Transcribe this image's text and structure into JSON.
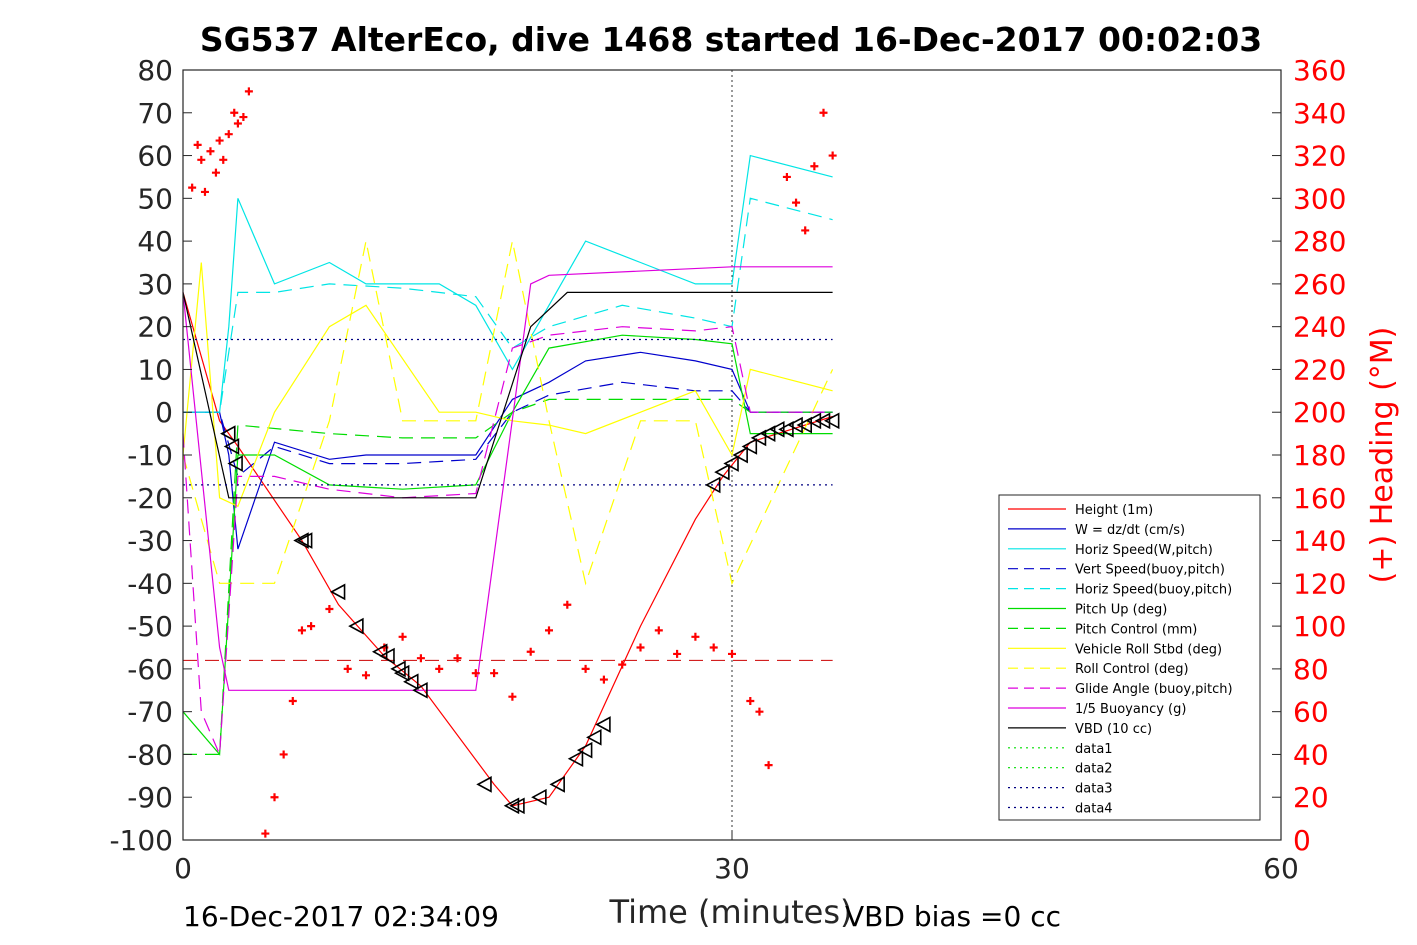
{
  "chart_data": {
    "type": "line",
    "title": "SG537 AlterEco, dive 1468 started 16-Dec-2017 00:02:03",
    "xlabel": "Time (minutes)",
    "ylabel_right": "(+) Heading (°M)",
    "xlim": [
      0,
      60
    ],
    "ylim": [
      -100,
      80
    ],
    "ylim_right": [
      0,
      360
    ],
    "x_ticks": [
      0,
      30,
      60
    ],
    "y_ticks": [
      80,
      70,
      60,
      50,
      40,
      30,
      20,
      10,
      0,
      -10,
      -20,
      -30,
      -40,
      -50,
      -60,
      -70,
      -80,
      -90,
      -100
    ],
    "y_ticks_right": [
      360,
      340,
      320,
      300,
      280,
      260,
      240,
      220,
      200,
      180,
      160,
      140,
      120,
      100,
      80,
      60,
      40,
      20,
      0
    ],
    "footer_left": "16-Dec-2017 02:34:09",
    "footer_right": "VBD bias =0 cc",
    "grid": false,
    "legend_position": "lower-right",
    "vertical_marker_x": 30,
    "series": [
      {
        "name": "Height (1m)",
        "color": "#ff0000",
        "style": "solid",
        "x": [
          0,
          2,
          3,
          6.5,
          8.5,
          11,
          13,
          17,
          18,
          20,
          22,
          25,
          28,
          29.5,
          31,
          35.5
        ],
        "values": [
          28,
          -2,
          -8,
          -30,
          -45,
          -57,
          -64,
          -87,
          -92,
          -90,
          -78,
          -50,
          -25,
          -15,
          -7,
          -1
        ]
      },
      {
        "name": "W = dz/dt (cm/s)",
        "color": "#0000cc",
        "style": "solid",
        "x": [
          0,
          2,
          2.5,
          3,
          5,
          8,
          10,
          14,
          16,
          18,
          20,
          22,
          25,
          28,
          30,
          31,
          35.5
        ],
        "values": [
          0,
          0,
          -10,
          -32,
          -7,
          -11,
          -10,
          -10,
          -10,
          3,
          7,
          12,
          14,
          12,
          10,
          0,
          0
        ]
      },
      {
        "name": "Horiz Speed(W,pitch)",
        "color": "#00e5e5",
        "style": "solid",
        "x": [
          0,
          2,
          2.5,
          3,
          5,
          8,
          10,
          14,
          16,
          18,
          20,
          22,
          25,
          28,
          30,
          31,
          35.5
        ],
        "values": [
          0,
          0,
          20,
          50,
          30,
          35,
          30,
          30,
          25,
          10,
          25,
          40,
          35,
          30,
          30,
          60,
          55
        ]
      },
      {
        "name": "Vert Speed(buoy,pitch)",
        "color": "#0000cc",
        "style": "dashed",
        "x": [
          0,
          2,
          3,
          5,
          8,
          12,
          16,
          18,
          20,
          24,
          28,
          30,
          31,
          35.5
        ],
        "values": [
          0,
          0,
          -15,
          -8,
          -12,
          -12,
          -11,
          0,
          4,
          7,
          5,
          5,
          0,
          0
        ]
      },
      {
        "name": "Horiz Speed(buoy,pitch)",
        "color": "#00e5e5",
        "style": "dashed",
        "x": [
          0,
          2,
          3,
          5,
          8,
          12,
          16,
          18,
          20,
          24,
          28,
          30,
          31,
          35.5
        ],
        "values": [
          0,
          0,
          28,
          28,
          30,
          29,
          27,
          15,
          20,
          25,
          22,
          20,
          50,
          45
        ]
      },
      {
        "name": "Pitch Up (deg)",
        "color": "#00dd00",
        "style": "solid",
        "x": [
          0,
          2,
          3,
          5,
          8,
          12,
          16,
          18,
          20,
          24,
          28,
          30,
          31,
          35.5
        ],
        "values": [
          -70,
          -80,
          -10,
          -10,
          -17,
          -18,
          -17,
          0,
          15,
          18,
          17,
          16,
          -5,
          -5
        ]
      },
      {
        "name": "Pitch Control (mm)",
        "color": "#00dd00",
        "style": "dashed",
        "x": [
          0,
          2,
          3,
          8,
          12,
          16,
          18,
          20,
          24,
          28,
          30,
          31,
          35.5
        ],
        "values": [
          -80,
          -80,
          -3,
          -5,
          -6,
          -6,
          0,
          3,
          3,
          3,
          3,
          0,
          0
        ]
      },
      {
        "name": "Vehicle Roll Stbd (deg)",
        "color": "#ffff00",
        "style": "solid",
        "x": [
          0,
          1,
          2,
          3,
          5,
          8,
          10,
          14,
          16,
          18,
          20,
          22,
          25,
          28,
          30,
          31,
          35.5
        ],
        "values": [
          -10,
          35,
          -20,
          -22,
          0,
          20,
          25,
          0,
          0,
          -2,
          -3,
          -5,
          0,
          5,
          -10,
          10,
          5
        ]
      },
      {
        "name": "Roll Control (deg)",
        "color": "#ffff00",
        "style": "dashed",
        "x": [
          0,
          2,
          3,
          5,
          8,
          10,
          12,
          16,
          18,
          20,
          22,
          25,
          28,
          30,
          35.5
        ],
        "values": [
          -10,
          -40,
          -40,
          -40,
          -2,
          40,
          -2,
          -2,
          40,
          -2,
          -40,
          -2,
          -2,
          -40,
          10
        ]
      },
      {
        "name": "Glide Angle (buoy,pitch)",
        "color": "#dd00dd",
        "style": "dashed",
        "x": [
          0,
          1,
          2,
          3,
          5,
          8,
          12,
          16,
          18,
          20,
          24,
          28,
          30,
          31,
          35.5
        ],
        "values": [
          -5,
          -70,
          -80,
          -15,
          -15,
          -18,
          -20,
          -19,
          15,
          18,
          20,
          19,
          20,
          0,
          0
        ]
      },
      {
        "name": "1/5 Buoyancy (g)",
        "color": "#dd00dd",
        "style": "solid",
        "x": [
          0,
          2,
          2.5,
          16,
          19,
          20,
          30,
          32,
          35.5
        ],
        "values": [
          28,
          -55,
          -65,
          -65,
          30,
          32,
          34,
          34,
          34
        ]
      },
      {
        "name": "VBD (10 cc)",
        "color": "#000000",
        "style": "solid",
        "x": [
          0,
          2.5,
          16,
          19,
          21,
          30,
          32,
          35.5
        ],
        "values": [
          28,
          -20,
          -20,
          20,
          28,
          28,
          28,
          28
        ]
      },
      {
        "name": "data1",
        "color": "#00dd00",
        "style": "dotted",
        "x": [],
        "values": []
      },
      {
        "name": "data2",
        "color": "#00dd00",
        "style": "dotted",
        "x": [],
        "values": []
      },
      {
        "name": "data3",
        "color": "#000080",
        "style": "dotted",
        "x": [
          0,
          35.5
        ],
        "values": [
          -17,
          -17
        ]
      },
      {
        "name": "data4",
        "color": "#000080",
        "style": "dotted",
        "x": [
          0,
          35.5
        ],
        "values": [
          17,
          17
        ]
      }
    ],
    "reference_lines": [
      {
        "color": "#cc0000",
        "style": "dashed",
        "y": -58,
        "x_from": 0,
        "x_to": 35.5
      }
    ],
    "heading_points": {
      "color": "#ff0000",
      "marker": "+",
      "axis": "right",
      "x": [
        0.5,
        0.8,
        1,
        1.2,
        1.5,
        1.8,
        2,
        2.2,
        2.5,
        2.8,
        3,
        3.3,
        3.6,
        4.5,
        5,
        5.5,
        6,
        6.5,
        7,
        8,
        9,
        10,
        11,
        12,
        13,
        14,
        15,
        16,
        17,
        18,
        19,
        20,
        21,
        22,
        23,
        24,
        25,
        26,
        27,
        28,
        29,
        30,
        31,
        31.5,
        32,
        33,
        33.5,
        34,
        34.5,
        35,
        35.5
      ],
      "values": [
        305,
        325,
        318,
        303,
        322,
        312,
        327,
        318,
        330,
        340,
        335,
        338,
        350,
        3,
        20,
        40,
        65,
        98,
        100,
        108,
        80,
        77,
        90,
        95,
        85,
        80,
        85,
        78,
        78,
        67,
        88,
        98,
        110,
        80,
        75,
        82,
        90,
        98,
        87,
        95,
        90,
        87,
        65,
        60,
        35,
        310,
        298,
        285,
        315,
        340,
        320
      ]
    },
    "triangle_markers": {
      "color": "#000000",
      "marker": "triangle",
      "x": [
        2.5,
        2.7,
        2.9,
        6.5,
        6.7,
        8.5,
        9.5,
        10.8,
        11.2,
        11.8,
        12,
        12.5,
        13,
        16.5,
        18,
        18.3,
        19.5,
        20.5,
        21.5,
        22,
        22.5,
        23,
        29,
        29.5,
        30,
        30.5,
        31,
        31.5,
        32,
        32.5,
        33,
        33.5,
        34,
        34.5,
        35,
        35.5
      ],
      "values": [
        -5,
        -8,
        -12,
        -30,
        -30,
        -42,
        -50,
        -56,
        -57,
        -60,
        -61,
        -63,
        -65,
        -87,
        -92,
        -92,
        -90,
        -87,
        -81,
        -79,
        -76,
        -73,
        -17,
        -14,
        -12,
        -10,
        -8,
        -6,
        -5,
        -4,
        -4,
        -3,
        -3,
        -2,
        -2,
        -2
      ]
    }
  }
}
